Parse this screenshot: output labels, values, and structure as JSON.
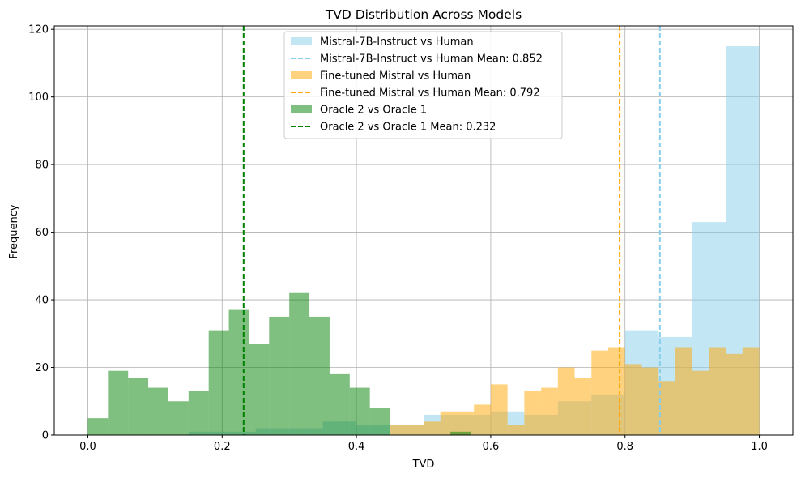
{
  "chart_data": {
    "type": "histogram",
    "title": "TVD Distribution Across Models",
    "xlabel": "TVD",
    "ylabel": "Frequency",
    "xlim": [
      -0.05,
      1.05
    ],
    "ylim": [
      0,
      121
    ],
    "xticks": [
      0.0,
      0.2,
      0.4,
      0.6,
      0.8,
      1.0
    ],
    "xtick_labels": [
      "0.0",
      "0.2",
      "0.4",
      "0.6",
      "0.8",
      "1.0"
    ],
    "yticks": [
      0,
      20,
      40,
      60,
      80,
      100,
      120
    ],
    "ytick_labels": [
      "0",
      "20",
      "40",
      "60",
      "80",
      "100",
      "120"
    ],
    "grid": true,
    "legend_position": "top-center",
    "series": [
      {
        "name": "Mistral-7B-Instruct vs Human",
        "color": "#87ceeb",
        "opacity": 0.5,
        "bins": [
          [
            0.4,
            0.45,
            3
          ],
          [
            0.45,
            0.5,
            3
          ],
          [
            0.5,
            0.55,
            6
          ],
          [
            0.55,
            0.6,
            6
          ],
          [
            0.6,
            0.65,
            7
          ],
          [
            0.65,
            0.7,
            6
          ],
          [
            0.7,
            0.75,
            10
          ],
          [
            0.75,
            0.8,
            12
          ],
          [
            0.8,
            0.85,
            31
          ],
          [
            0.85,
            0.9,
            29
          ],
          [
            0.9,
            0.95,
            63
          ],
          [
            0.95,
            1.0,
            115
          ]
        ]
      },
      {
        "name": "Fine-tuned Mistral vs Human",
        "color": "#ffa500",
        "opacity": 0.5,
        "bins": [
          [
            0.45,
            0.475,
            3
          ],
          [
            0.475,
            0.5,
            3
          ],
          [
            0.5,
            0.525,
            4
          ],
          [
            0.525,
            0.55,
            7
          ],
          [
            0.55,
            0.575,
            7
          ],
          [
            0.575,
            0.6,
            9
          ],
          [
            0.6,
            0.625,
            15
          ],
          [
            0.625,
            0.65,
            3
          ],
          [
            0.65,
            0.675,
            13
          ],
          [
            0.675,
            0.7,
            14
          ],
          [
            0.7,
            0.725,
            20
          ],
          [
            0.725,
            0.75,
            17
          ],
          [
            0.75,
            0.775,
            25
          ],
          [
            0.775,
            0.8,
            26
          ],
          [
            0.8,
            0.825,
            21
          ],
          [
            0.825,
            0.85,
            20
          ],
          [
            0.85,
            0.875,
            16
          ],
          [
            0.875,
            0.9,
            26
          ],
          [
            0.9,
            0.925,
            19
          ],
          [
            0.925,
            0.95,
            26
          ],
          [
            0.95,
            0.975,
            24
          ],
          [
            0.975,
            1.0,
            26
          ]
        ]
      },
      {
        "name": "Oracle 2 vs Oracle 1",
        "color": "#008000",
        "opacity": 0.5,
        "bins": [
          [
            0.0,
            0.03,
            5
          ],
          [
            0.03,
            0.06,
            19
          ],
          [
            0.06,
            0.09,
            17
          ],
          [
            0.09,
            0.12,
            14
          ],
          [
            0.12,
            0.15,
            10
          ],
          [
            0.15,
            0.18,
            13
          ],
          [
            0.18,
            0.21,
            31
          ],
          [
            0.21,
            0.24,
            37
          ],
          [
            0.24,
            0.27,
            27
          ],
          [
            0.27,
            0.3,
            35
          ],
          [
            0.3,
            0.33,
            42
          ],
          [
            0.33,
            0.36,
            35
          ],
          [
            0.36,
            0.39,
            18
          ],
          [
            0.39,
            0.42,
            14
          ],
          [
            0.42,
            0.45,
            8
          ],
          [
            0.54,
            0.57,
            1
          ]
        ]
      }
    ],
    "background_bins": {
      "series": "Mistral-7B-Instruct vs Human",
      "bins": [
        [
          0.15,
          0.2,
          1
        ],
        [
          0.2,
          0.25,
          1
        ],
        [
          0.25,
          0.3,
          2
        ],
        [
          0.3,
          0.35,
          2
        ],
        [
          0.35,
          0.4,
          4
        ]
      ]
    },
    "mean_lines": [
      {
        "name": "Mistral-7B-Instruct vs Human Mean: 0.852",
        "x": 0.852,
        "color": "#87ceeb"
      },
      {
        "name": "Fine-tuned Mistral vs Human Mean: 0.792",
        "x": 0.792,
        "color": "#ffa500"
      },
      {
        "name": "Oracle 2 vs Oracle 1 Mean: 0.232",
        "x": 0.232,
        "color": "#008000"
      }
    ],
    "legend": [
      {
        "label": "Mistral-7B-Instruct vs Human",
        "kind": "patch",
        "color": "#87ceeb",
        "opacity": 0.5
      },
      {
        "label": "Mistral-7B-Instruct vs Human Mean: 0.852",
        "kind": "line",
        "color": "#87ceeb"
      },
      {
        "label": "Fine-tuned Mistral vs Human",
        "kind": "patch",
        "color": "#ffa500",
        "opacity": 0.5
      },
      {
        "label": "Fine-tuned Mistral vs Human Mean: 0.792",
        "kind": "line",
        "color": "#ffa500"
      },
      {
        "label": "Oracle 2 vs Oracle 1",
        "kind": "patch",
        "color": "#008000",
        "opacity": 0.5
      },
      {
        "label": "Oracle 2 vs Oracle 1 Mean: 0.232",
        "kind": "line",
        "color": "#008000"
      }
    ]
  }
}
